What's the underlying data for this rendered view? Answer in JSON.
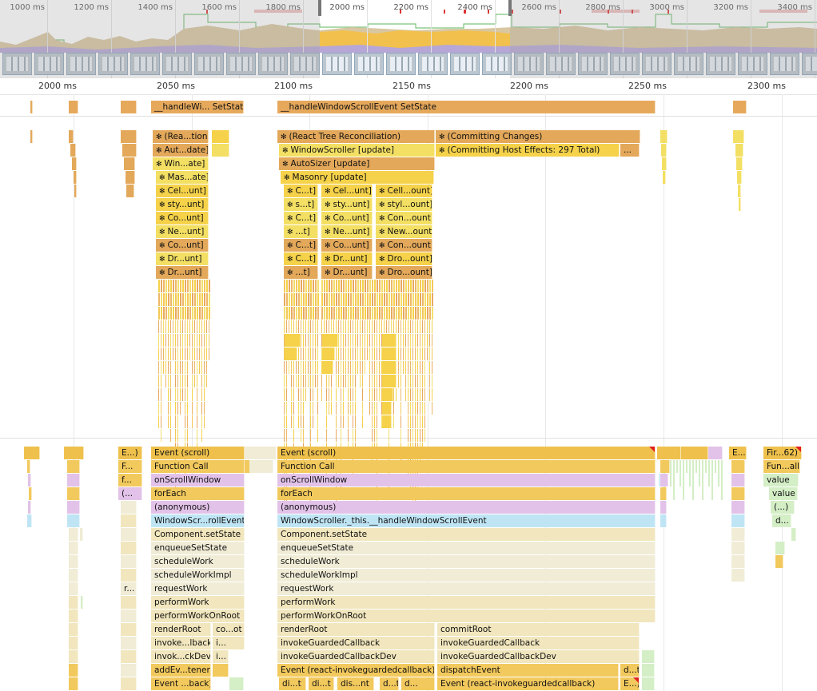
{
  "overview": {
    "ticks": [
      "1000 ms",
      "1200 ms",
      "1400 ms",
      "1600 ms",
      "1800 ms",
      "2000 ms",
      "2200 ms",
      "2400 ms",
      "2600 ms",
      "2800 ms",
      "3000 ms",
      "3200 ms",
      "3400 ms"
    ]
  },
  "ruler": {
    "ticks": [
      "2000 ms",
      "2050 ms",
      "2100 ms",
      "2150 ms",
      "2200 ms",
      "2250 ms",
      "2300 ms"
    ]
  },
  "timings": {
    "left_label": "__handleWi... SetState",
    "main_label": "__handleWindowScrollEvent SetState"
  },
  "react": {
    "left": [
      "(Rea...tion)",
      "Aut...date]",
      "Win...ate]",
      "Mas...ate]",
      "Cel...unt]",
      "sty...unt]",
      "Co...unt]",
      "Ne...unt]",
      "Co...unt]",
      "Dr...unt]",
      "Dr...unt]"
    ],
    "main": {
      "reconciliation": "(React Tree Reconciliation)",
      "committing": "(Committing Changes)",
      "windowscroller": "WindowScroller [update]",
      "host_effects": "(Committing Host Effects: 297 Total)",
      "host_effects_more": "...",
      "autosizer": "AutoSizer [update]",
      "masonry": "Masonry [update]"
    },
    "col_a": [
      "C...t]",
      "s...t]",
      "C...t]",
      "...t]",
      "C...t]",
      "C...t]",
      "...t]"
    ],
    "col_b": [
      "Cel...unt]",
      "sty...unt]",
      "Co...unt]",
      "Ne...unt]",
      "Co...unt]",
      "Dr...unt]",
      "Dr...unt]"
    ],
    "col_c": [
      "Cell...ount]",
      "styl...ount]",
      "Con...ount]",
      "New...ount]",
      "Con...ount]",
      "Dro...ount]",
      "Dro...ount]"
    ]
  },
  "main_thread": {
    "left_stack": [
      "Event (scroll)",
      "Function Call",
      "onScrollWindow",
      "forEach",
      "(anonymous)",
      "WindowScr...rollEvent",
      "Component.setState",
      "enqueueSetState",
      "scheduleWork",
      "scheduleWorkImpl",
      "requestWork",
      "performWork",
      "performWorkOnRoot",
      "renderRoot",
      "invoke...lback",
      "invok...ckDev",
      "addEv...tener",
      "Event ...back)"
    ],
    "left_side": [
      "co...ot",
      "i...",
      "i..."
    ],
    "left_edge": [
      "E...)",
      "F...",
      "f...",
      "(...",
      "r..."
    ],
    "main_stack": [
      "Event (scroll)",
      "Function Call",
      "onScrollWindow",
      "forEach",
      "(anonymous)",
      "WindowScroller._this.__handleWindowScrollEvent",
      "Component.setState",
      "enqueueSetState",
      "scheduleWork",
      "scheduleWorkImpl",
      "requestWork",
      "performWork",
      "performWorkOnRoot",
      "renderRoot",
      "invokeGuardedCallback",
      "invokeGuardedCallbackDev",
      "Event (react-invokeguardedcallback)"
    ],
    "main_tail": [
      "di...t",
      "di...t",
      "dis...nt",
      "d...t",
      "d..."
    ],
    "commit": [
      "commitRoot",
      "invokeGuardedCallback",
      "invokeGuardedCallbackDev",
      "dispatchEvent",
      "Event (react-invokeguardedcallback)"
    ],
    "commit_more": [
      "d...t",
      "E...)"
    ],
    "right_e": "E...)",
    "right_stack": [
      "Fir...62)",
      "Fun...all",
      "value",
      "value",
      "(...)",
      "d..."
    ]
  }
}
